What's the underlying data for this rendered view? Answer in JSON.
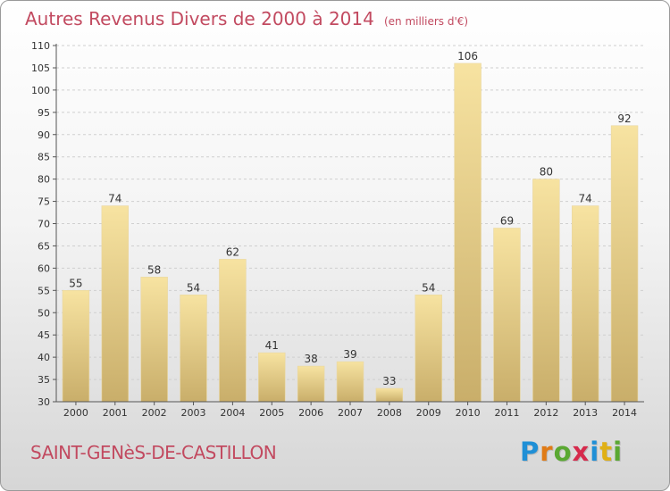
{
  "header": {
    "title": "Autres Revenus Divers de 2000 à 2014",
    "subtitle": "(en milliers d'€)"
  },
  "footer": {
    "commune": "SAINT-GENèS-DE-CASTILLON",
    "brand": "Proxiti",
    "brand_letter_colors": [
      "#1f8fd6",
      "#e07b16",
      "#5aa832",
      "#d62a4c",
      "#1f8fd6",
      "#e0b016",
      "#5aa832"
    ]
  },
  "colors": {
    "title": "#c24a60",
    "bar_light": "#f7e3a1",
    "bar_dark": "#c9ae6a",
    "grid": "#cfcfcf",
    "axis": "#555555",
    "label": "#333333"
  },
  "chart_data": {
    "type": "bar",
    "title": "Autres Revenus Divers de 2000 à 2014",
    "categories": [
      "2000",
      "2001",
      "2002",
      "2003",
      "2004",
      "2005",
      "2006",
      "2007",
      "2008",
      "2009",
      "2010",
      "2011",
      "2012",
      "2013",
      "2014"
    ],
    "values": [
      55,
      74,
      58,
      54,
      62,
      41,
      38,
      39,
      33,
      54,
      106,
      69,
      80,
      74,
      92
    ],
    "ylim": [
      30,
      110
    ],
    "yticks": [
      30,
      35,
      40,
      45,
      50,
      55,
      60,
      65,
      70,
      75,
      80,
      85,
      90,
      95,
      100,
      105,
      110
    ],
    "grid": "horizontal dashed",
    "data_labels": true
  }
}
